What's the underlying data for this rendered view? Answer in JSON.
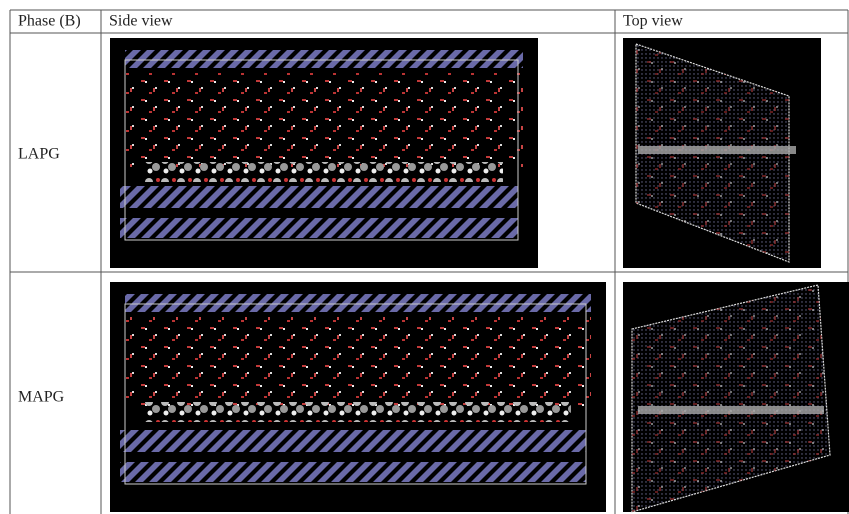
{
  "table": {
    "header": [
      "Phase (B)",
      "Side view",
      "Top view"
    ],
    "rows": [
      "LAPG",
      "MAPG"
    ]
  }
}
